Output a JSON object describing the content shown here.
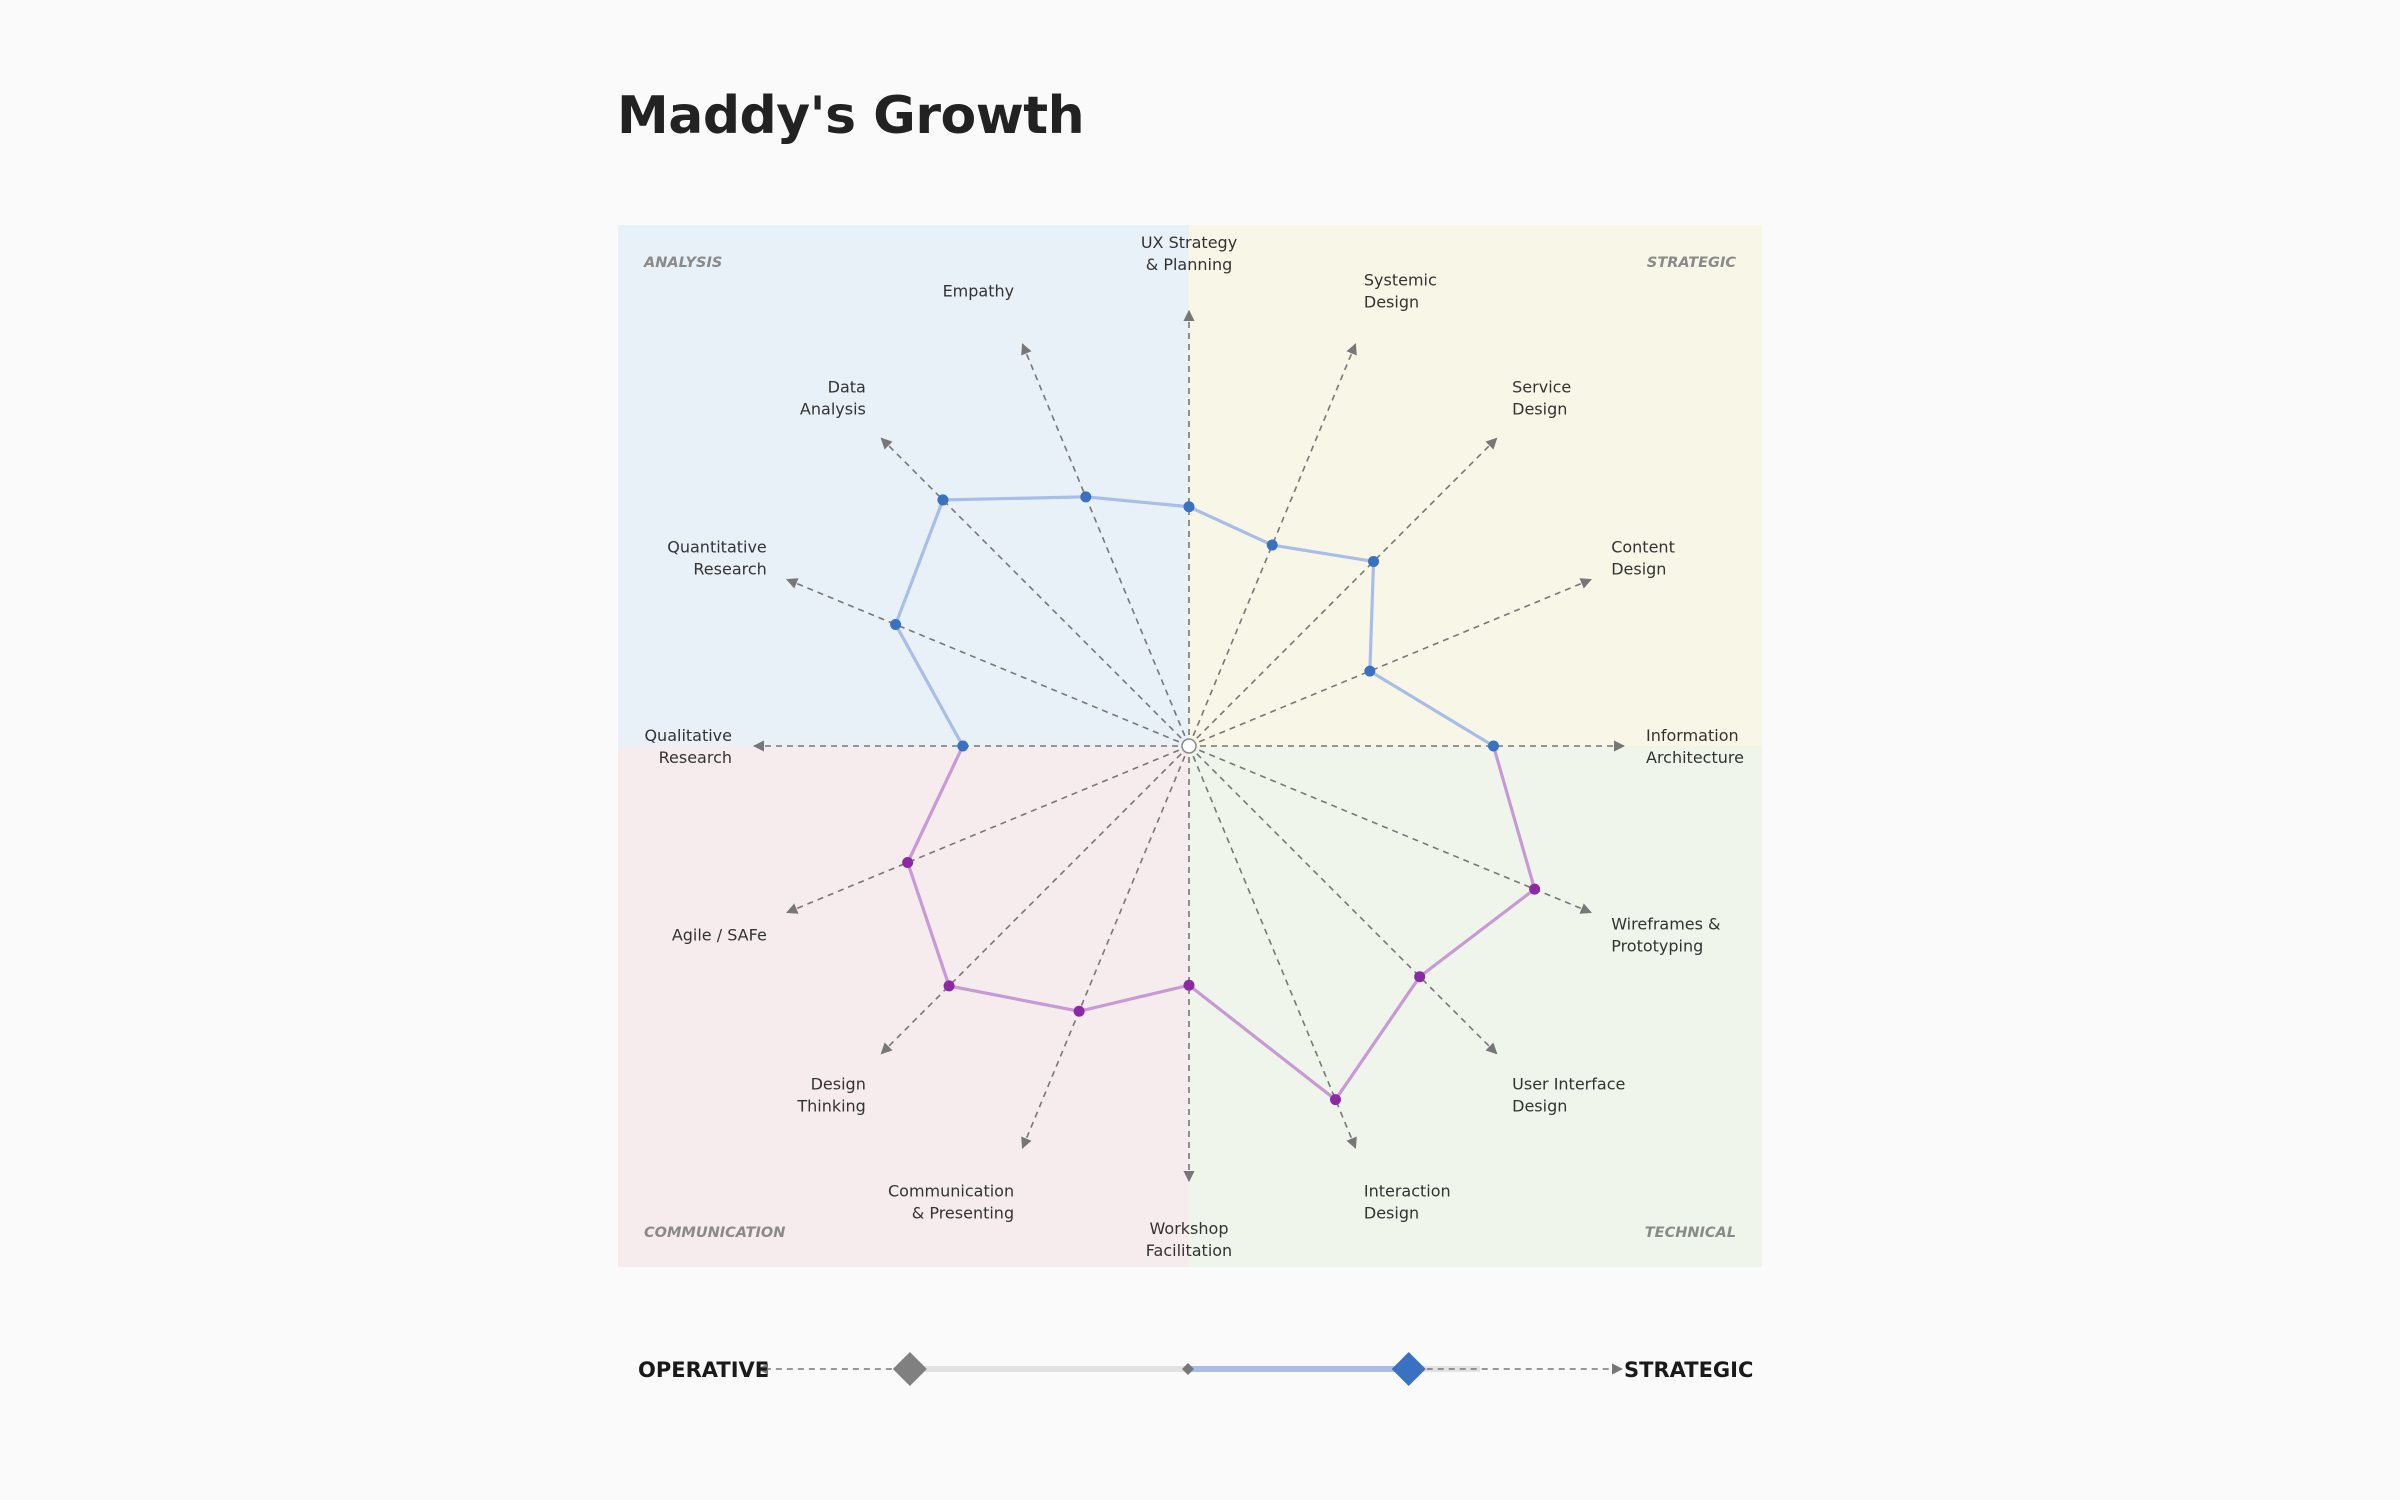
{
  "title": "Maddy's Growth",
  "chart_data": {
    "type": "radar",
    "title": "Maddy's Growth",
    "quadrants": [
      {
        "name": "ANALYSIS",
        "position": "top-left",
        "color": "#e8f0f8"
      },
      {
        "name": "STRATEGIC",
        "position": "top-right",
        "color": "#f8f6e6"
      },
      {
        "name": "COMMUNICATION",
        "position": "bottom-left",
        "color": "#f6eced"
      },
      {
        "name": "TECHNICAL",
        "position": "bottom-right",
        "color": "#eff5ea"
      }
    ],
    "axes": [
      {
        "lines": [
          "UX Strategy",
          "& Planning"
        ],
        "value": 0.55
      },
      {
        "lines": [
          "Systemic",
          "Design"
        ],
        "value": 0.5
      },
      {
        "lines": [
          "Service",
          "Design"
        ],
        "value": 0.6
      },
      {
        "lines": [
          "Content",
          "Design"
        ],
        "value": 0.45
      },
      {
        "lines": [
          "Information",
          "Architecture"
        ],
        "value": 0.7
      },
      {
        "lines": [
          "Wireframes &",
          "Prototyping"
        ],
        "value": 0.86
      },
      {
        "lines": [
          "User Interface",
          "Design"
        ],
        "value": 0.75
      },
      {
        "lines": [
          "Interaction",
          "Design"
        ],
        "value": 0.88
      },
      {
        "lines": [
          "Workshop",
          "Facilitation"
        ],
        "value": 0.55
      },
      {
        "lines": [
          "Communication",
          "& Presenting"
        ],
        "value": 0.66
      },
      {
        "lines": [
          "Design",
          "Thinking"
        ],
        "value": 0.78
      },
      {
        "lines": [
          "Agile / SAFe"
        ],
        "value": 0.7
      },
      {
        "lines": [
          "Qualitative",
          "Research"
        ],
        "value": 0.52
      },
      {
        "lines": [
          "Quantitative",
          "Research"
        ],
        "value": 0.73
      },
      {
        "lines": [
          "Data",
          "Analysis"
        ],
        "value": 0.8
      },
      {
        "lines": [
          "Empathy"
        ],
        "value": 0.62
      }
    ],
    "scale": [
      0,
      1
    ],
    "series_colors": {
      "upper": "#a8bde8",
      "lower": "#c79ad6"
    },
    "point_colors": {
      "upper": "#3a72c2",
      "lower": "#8c2aa6"
    }
  },
  "slider": {
    "left_label": "OPERATIVE",
    "right_label": "STRATEGIC",
    "operative_value": -0.5,
    "strategic_value": 0.62,
    "operative_color": "#808080",
    "strategic_color": "#3a72c2",
    "track_fill_color": "#a8bde8"
  }
}
